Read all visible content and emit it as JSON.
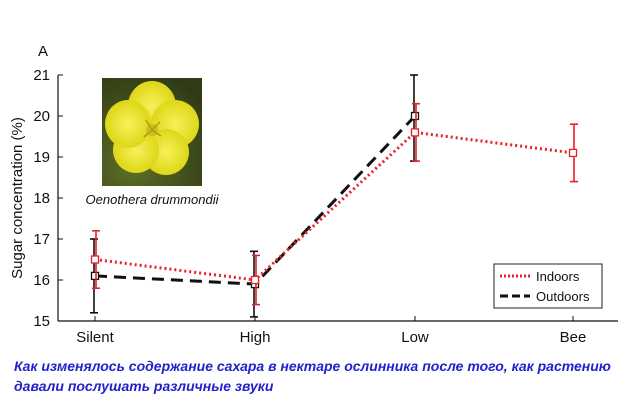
{
  "caption": "Как изменялось содержание сахара в нектаре ослинника после того, как растению давали послушать различные звуки",
  "inset": {
    "caption": "Oenothera drummondii",
    "icon": "yellow-flower-photo"
  },
  "chart_data": {
    "type": "line",
    "panel_label": "A",
    "categories": [
      "Silent",
      "High",
      "Low",
      "Bee"
    ],
    "ylabel": "Sugar concentration (%)",
    "xlabel": "",
    "ylim": [
      15,
      21
    ],
    "yticks": [
      15,
      16,
      17,
      18,
      19,
      20,
      21
    ],
    "grid": false,
    "legend_position": "bottom-right",
    "series": [
      {
        "name": "Indoors",
        "color": "#e8202a",
        "line_style": "dotted",
        "values": [
          16.5,
          16.0,
          19.6,
          19.1
        ],
        "err_high": [
          17.2,
          16.6,
          20.3,
          19.8
        ],
        "err_low": [
          15.8,
          15.4,
          18.9,
          18.4
        ]
      },
      {
        "name": "Outdoors",
        "color": "#111111",
        "line_style": "dashed",
        "values": [
          16.1,
          15.9,
          20.0,
          null
        ],
        "err_high": [
          17.0,
          16.7,
          21.0,
          null
        ],
        "err_low": [
          15.2,
          15.1,
          18.9,
          null
        ]
      }
    ]
  }
}
